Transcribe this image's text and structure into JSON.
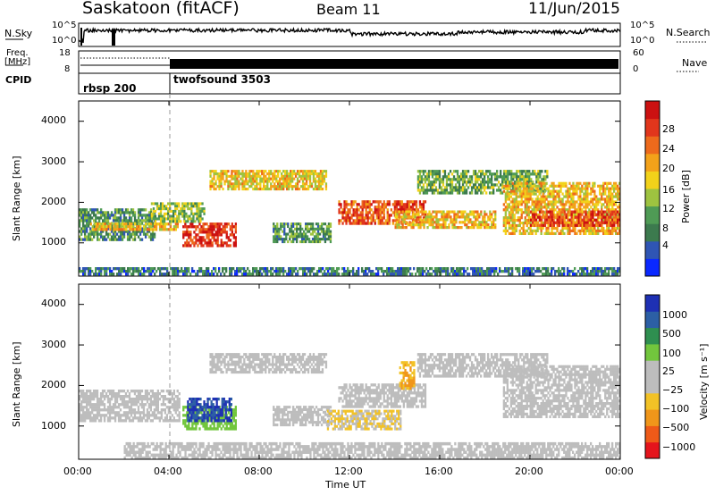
{
  "header": {
    "station": "Saskatoon (fitACF)",
    "beam": "Beam 11",
    "date": "11/Jun/2015"
  },
  "noise_panel": {
    "left_label": "N.Sky",
    "right_label": "N.Search",
    "ticks_left": [
      "10^5",
      "10^0"
    ],
    "ticks_right": [
      "10^5",
      "10^0"
    ]
  },
  "freq_panel": {
    "left_label_line1": "Freq.",
    "left_label_line2": "[MHz]",
    "right_label": "Nave",
    "ticks_left": [
      "18",
      "8"
    ],
    "ticks_right": [
      "60",
      "0"
    ]
  },
  "cpid": {
    "label": "CPID",
    "programs": [
      {
        "name": "rbsp 200",
        "start_h": 0
      },
      {
        "name": "twofsound 3503",
        "start_h": 4
      }
    ]
  },
  "x_axis": {
    "label": "Time UT",
    "ticks": [
      "00:00",
      "04:00",
      "08:00",
      "12:00",
      "16:00",
      "20:00",
      "00:00"
    ]
  },
  "y_axis": {
    "label": "Slant Range [km]",
    "ticks": [
      "1000",
      "2000",
      "3000",
      "4000"
    ]
  },
  "power_colorbar": {
    "label": "Power [dB]",
    "ticks": [
      "4",
      "8",
      "12",
      "16",
      "20",
      "24",
      "28"
    ]
  },
  "velocity_colorbar": {
    "label": "Velocity [m s⁻¹]",
    "ticks": [
      "1000",
      "500",
      "100",
      "25",
      "−25",
      "−100",
      "−500",
      "−1000"
    ]
  },
  "colors": {
    "power_scale": [
      "#0a28ff",
      "#2f55b4",
      "#3c7a4e",
      "#4f9b55",
      "#9ec340",
      "#f2d21a",
      "#f3a21a",
      "#ed6a1c",
      "#e1361c",
      "#cc1111"
    ],
    "velocity_scale": [
      "#e4141c",
      "#ee5a18",
      "#f0961a",
      "#f2c226",
      "#bdbdbd",
      "#bdbdbd",
      "#72c63d",
      "#2f8f50",
      "#2c5fa5",
      "#1e30b4"
    ]
  },
  "chart_data": [
    {
      "type": "heatmap",
      "title": "Power",
      "xlabel": "Time UT",
      "ylabel": "Slant Range [km]",
      "x_range_hours": [
        0,
        24
      ],
      "ylim": [
        180,
        4500
      ],
      "colorbar_label": "Power [dB]",
      "colorbar_range": [
        0,
        30
      ],
      "features": [
        {
          "t0": 0.0,
          "t1": 3.4,
          "r0": 1050,
          "r1": 1850,
          "value": 9
        },
        {
          "t0": 0.5,
          "t1": 4.5,
          "r0": 1300,
          "r1": 1500,
          "value": 18
        },
        {
          "t0": 4.6,
          "t1": 7.0,
          "r0": 900,
          "r1": 1500,
          "value": 26
        },
        {
          "t0": 3.2,
          "t1": 5.6,
          "r0": 1500,
          "r1": 2000,
          "value": 13
        },
        {
          "t0": 5.8,
          "t1": 11.0,
          "r0": 2300,
          "r1": 2800,
          "value": 17
        },
        {
          "t0": 8.6,
          "t1": 11.2,
          "r0": 1000,
          "r1": 1500,
          "value": 10
        },
        {
          "t0": 11.5,
          "t1": 15.4,
          "r0": 1450,
          "r1": 2050,
          "value": 24
        },
        {
          "t0": 14.0,
          "t1": 18.5,
          "r0": 1350,
          "r1": 1800,
          "value": 18
        },
        {
          "t0": 15.0,
          "t1": 20.8,
          "r0": 2200,
          "r1": 2800,
          "value": 11
        },
        {
          "t0": 18.8,
          "t1": 24.0,
          "r0": 1200,
          "r1": 2500,
          "value": 18
        },
        {
          "t0": 20.0,
          "t1": 24.0,
          "r0": 1400,
          "r1": 1800,
          "value": 25
        },
        {
          "t0": 0.0,
          "t1": 24.0,
          "r0": 200,
          "r1": 400,
          "value": 7
        }
      ]
    },
    {
      "type": "heatmap",
      "title": "Velocity",
      "xlabel": "Time UT",
      "ylabel": "Slant Range [km]",
      "x_range_hours": [
        0,
        24
      ],
      "ylim": [
        180,
        4500
      ],
      "colorbar_label": "Velocity [m s⁻¹]",
      "colorbar_range": [
        -1000,
        1000
      ],
      "features": [
        {
          "t0": 0.0,
          "t1": 4.5,
          "r0": 1100,
          "r1": 1900,
          "value": 0
        },
        {
          "t0": 4.6,
          "t1": 7.0,
          "r0": 900,
          "r1": 1500,
          "value": 300
        },
        {
          "t0": 4.8,
          "t1": 6.8,
          "r0": 1100,
          "r1": 1700,
          "value": 800
        },
        {
          "t0": 5.8,
          "t1": 11.0,
          "r0": 2300,
          "r1": 2800,
          "value": 0
        },
        {
          "t0": 8.6,
          "t1": 11.2,
          "r0": 1000,
          "r1": 1500,
          "value": 0
        },
        {
          "t0": 11.0,
          "t1": 14.3,
          "r0": 900,
          "r1": 1400,
          "value": -200
        },
        {
          "t0": 11.5,
          "t1": 15.4,
          "r0": 1450,
          "r1": 2050,
          "value": 0
        },
        {
          "t0": 14.2,
          "t1": 14.9,
          "r0": 1900,
          "r1": 2600,
          "value": -400
        },
        {
          "t0": 15.0,
          "t1": 20.8,
          "r0": 2200,
          "r1": 2800,
          "value": 0
        },
        {
          "t0": 18.8,
          "t1": 24.0,
          "r0": 1200,
          "r1": 2500,
          "value": 0
        },
        {
          "t0": 2.0,
          "t1": 24.0,
          "r0": 180,
          "r1": 600,
          "value": -80
        }
      ]
    }
  ]
}
